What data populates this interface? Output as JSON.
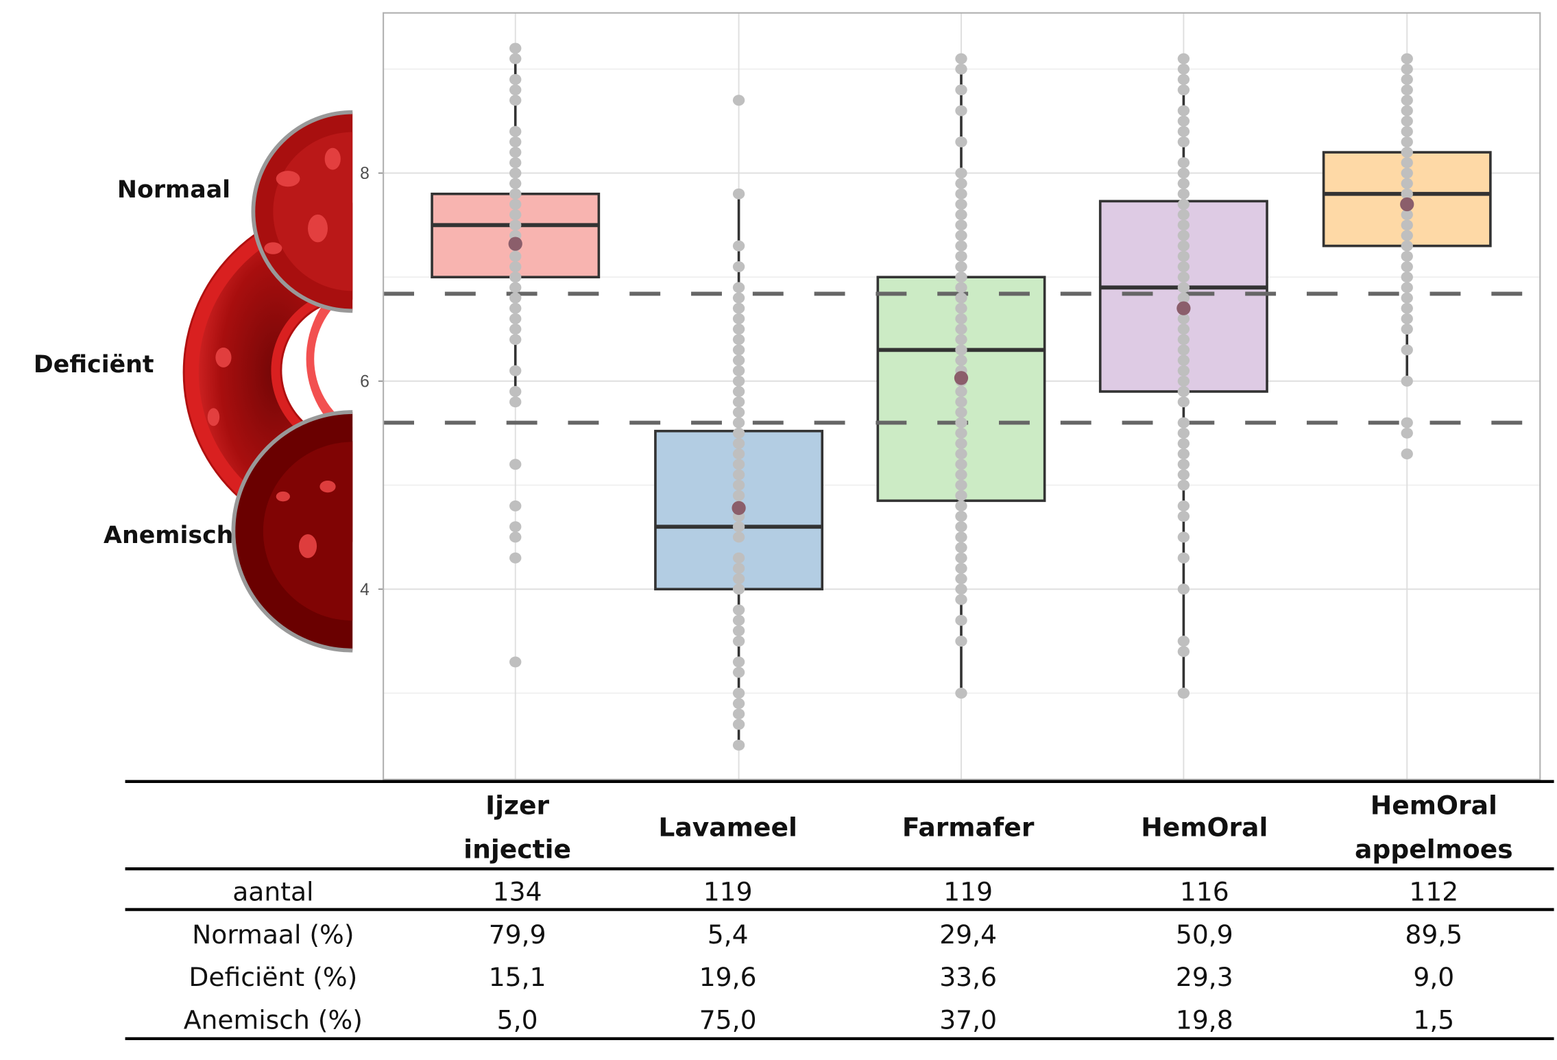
{
  "chart_data": {
    "type": "boxplot",
    "ylim": [
      2.17,
      9.54
    ],
    "yticks": [
      "4",
      "6",
      "8"
    ],
    "grid": true,
    "reference_lines": [
      6.84,
      5.6
    ],
    "categories": [
      "Ijzer injectie",
      "Lavameel",
      "Farmafer",
      "HemOral",
      "HemOral appelmoes"
    ],
    "colors": [
      "#F8B4B0",
      "#B3CDE3",
      "#CCEBC5",
      "#DECBE4",
      "#FED9A6"
    ],
    "mean_color": "#8B5E6B",
    "dot_color": "#BFBFBF",
    "boxes": [
      {
        "q1": 7.0,
        "median": 7.5,
        "q3": 7.8,
        "mean": 7.32,
        "whisker_low": 5.8,
        "whisker_high": 9.2
      },
      {
        "q1": 4.0,
        "median": 4.6,
        "q3": 5.52,
        "mean": 4.78,
        "whisker_low": 2.5,
        "whisker_high": 7.8
      },
      {
        "q1": 4.85,
        "median": 6.3,
        "q3": 7.0,
        "mean": 6.03,
        "whisker_low": 3.0,
        "whisker_high": 9.1
      },
      {
        "q1": 5.9,
        "median": 6.9,
        "q3": 7.73,
        "mean": 6.7,
        "whisker_low": 3.0,
        "whisker_high": 9.1
      },
      {
        "q1": 7.3,
        "median": 7.8,
        "q3": 8.2,
        "mean": 7.7,
        "whisker_low": 6.0,
        "whisker_high": 9.1
      }
    ],
    "points": [
      [
        9.2,
        9.1,
        8.9,
        8.8,
        8.7,
        8.4,
        8.3,
        8.2,
        8.1,
        8.0,
        7.9,
        7.8,
        7.7,
        7.6,
        7.5,
        7.4,
        7.3,
        7.2,
        7.1,
        7.0,
        6.9,
        6.8,
        6.7,
        6.6,
        6.5,
        6.4,
        6.1,
        5.9,
        5.8,
        5.2,
        4.8,
        4.6,
        4.5,
        4.3,
        3.3
      ],
      [
        8.7,
        7.8,
        7.3,
        7.1,
        6.9,
        6.8,
        6.7,
        6.6,
        6.5,
        6.4,
        6.3,
        6.2,
        6.1,
        6.0,
        5.9,
        5.8,
        5.7,
        5.6,
        5.5,
        5.4,
        5.3,
        5.2,
        5.1,
        5.0,
        4.9,
        4.8,
        4.7,
        4.6,
        4.5,
        4.3,
        4.2,
        4.1,
        4.0,
        3.8,
        3.7,
        3.6,
        3.5,
        3.3,
        3.2,
        3.0,
        2.9,
        2.8,
        2.7,
        2.5
      ],
      [
        9.1,
        9.0,
        8.8,
        8.6,
        8.3,
        8.0,
        7.9,
        7.8,
        7.7,
        7.6,
        7.5,
        7.4,
        7.3,
        7.2,
        7.1,
        7.0,
        6.9,
        6.8,
        6.7,
        6.6,
        6.5,
        6.4,
        6.3,
        6.2,
        6.1,
        6.0,
        5.9,
        5.8,
        5.7,
        5.6,
        5.5,
        5.4,
        5.3,
        5.2,
        5.1,
        5.0,
        4.9,
        4.8,
        4.7,
        4.6,
        4.5,
        4.4,
        4.3,
        4.2,
        4.1,
        4.0,
        3.9,
        3.7,
        3.5,
        3.0
      ],
      [
        9.1,
        9.0,
        8.9,
        8.8,
        8.6,
        8.5,
        8.4,
        8.3,
        8.1,
        8.0,
        7.9,
        7.8,
        7.7,
        7.6,
        7.5,
        7.4,
        7.3,
        7.2,
        7.1,
        7.0,
        6.9,
        6.8,
        6.7,
        6.6,
        6.5,
        6.4,
        6.3,
        6.2,
        6.1,
        6.0,
        5.9,
        5.8,
        5.6,
        5.5,
        5.4,
        5.3,
        5.2,
        5.1,
        5.0,
        4.8,
        4.7,
        4.5,
        4.3,
        4.0,
        3.5,
        3.4,
        3.0
      ],
      [
        9.1,
        9.0,
        8.9,
        8.8,
        8.7,
        8.6,
        8.5,
        8.4,
        8.3,
        8.2,
        8.1,
        8.0,
        7.9,
        7.8,
        7.7,
        7.6,
        7.5,
        7.4,
        7.3,
        7.2,
        7.1,
        7.0,
        6.9,
        6.8,
        6.7,
        6.6,
        6.5,
        6.3,
        6.0,
        5.6,
        5.5,
        5.3
      ]
    ]
  },
  "levels": {
    "normal": "Normaal",
    "deficient": "Deficiënt",
    "anemic": "Anemisch"
  },
  "table": {
    "headers": [
      [
        "Ijzer",
        "injectie"
      ],
      [
        "Lavameel"
      ],
      [
        "Farmafer"
      ],
      [
        "HemOral"
      ],
      [
        "HemOral",
        "appelmoes"
      ]
    ],
    "rows": [
      {
        "label": "aantal",
        "values": [
          "134",
          "119",
          "119",
          "116",
          "112"
        ]
      },
      {
        "label": "Normaal (%)",
        "values": [
          "79,9",
          "5,4",
          "29,4",
          "50,9",
          "89,5"
        ]
      },
      {
        "label": "Deficiënt (%)",
        "values": [
          "15,1",
          "19,6",
          "33,6",
          "29,3",
          "9,0"
        ]
      },
      {
        "label": "Anemisch (%)",
        "values": [
          "5,0",
          "75,0",
          "37,0",
          "19,8",
          "1,5"
        ]
      }
    ]
  }
}
